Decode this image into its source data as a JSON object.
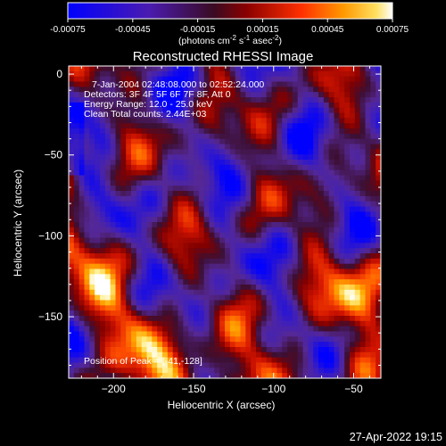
{
  "chart_data": {
    "type": "heatmap",
    "title": "Reconstructed RHESSI Image",
    "xlabel": "Heliocentric X (arcsec)",
    "ylabel": "Heliocentric Y (arcsec)",
    "xlim": [
      -228,
      -33
    ],
    "ylim": [
      -188,
      5
    ],
    "xticks": [
      -200,
      -150,
      -100,
      -50
    ],
    "yticks": [
      0,
      -50,
      -100,
      -150
    ],
    "colorbar": {
      "min": -0.00075,
      "max": 0.00075,
      "ticks": [
        "-0.00075",
        "-0.00045",
        "-0.00015",
        "0.00015",
        "0.00045",
        "0.00075"
      ],
      "units_text": "(photons cm",
      "units_sup1": "-2",
      "units_mid1": " s",
      "units_sup2": "-1",
      "units_mid2": " asec",
      "units_sup3": "-2",
      "units_end": ")"
    },
    "annotations": [
      "7-Jan-2004 02:48:08.000 to 02:52:24.000",
      "Detectors: 3F 4F 5F 6F 7F 8F, Att 0",
      "Energy Range: 12.0 - 25.0 keV",
      "Clean     Total counts: 2.44E+03"
    ],
    "peak_label": "Position of Peak = [-41,-128]",
    "grid": false
  },
  "footer": {
    "timestamp": "27-Apr-2022 19:15"
  }
}
